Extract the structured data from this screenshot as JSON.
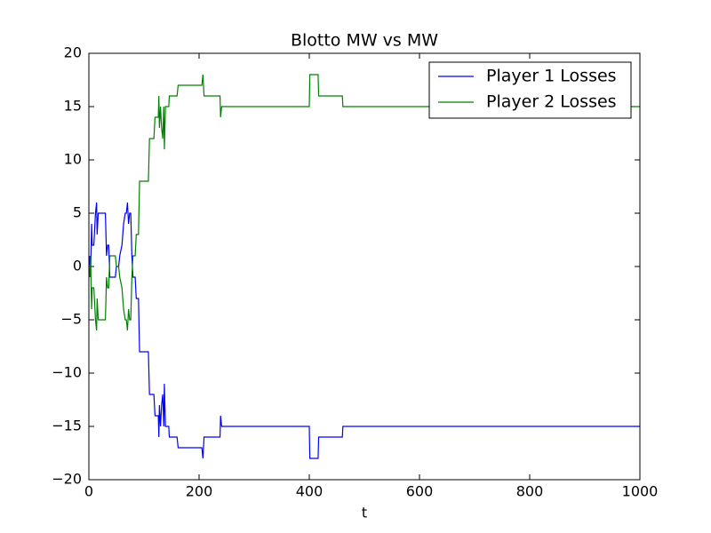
{
  "chart_data": {
    "type": "line",
    "title": "Blotto MW vs MW",
    "x_label": "t",
    "x": [
      0,
      2,
      3,
      5,
      6,
      9,
      10,
      12,
      14,
      15,
      17,
      30,
      32,
      34,
      36,
      38,
      48,
      50,
      54,
      56,
      60,
      63,
      66,
      68,
      70,
      72,
      74,
      76,
      78,
      80,
      84,
      86,
      90,
      92,
      108,
      110,
      118,
      120,
      126,
      127,
      128,
      130,
      132,
      134,
      136,
      137,
      139,
      145,
      146,
      160,
      162,
      205,
      207,
      209,
      238,
      239,
      241,
      400,
      401,
      416,
      417,
      460,
      461,
      1000
    ],
    "series": [
      {
        "name": "Player 1 Losses",
        "color": "#0000ff",
        "values": [
          0,
          1,
          -1,
          4,
          2,
          2,
          3,
          5,
          6,
          3,
          5,
          5,
          1,
          2,
          2,
          -1,
          -1,
          0,
          0,
          1,
          2,
          4,
          5,
          5,
          6,
          4,
          5,
          5,
          1,
          -1,
          -1,
          -3,
          -3,
          -8,
          -8,
          -12,
          -12,
          -14,
          -14,
          -16,
          -13,
          -15,
          -13,
          -12,
          -15,
          -11,
          -15,
          -15,
          -16,
          -16,
          -17,
          -17,
          -18,
          -16,
          -16,
          -14,
          -15,
          -15,
          -18,
          -18,
          -16,
          -16,
          -15,
          -15
        ]
      },
      {
        "name": "Player 2 Losses",
        "color": "#008000",
        "values": [
          0,
          -1,
          1,
          -4,
          -2,
          -2,
          -3,
          -5,
          -6,
          -3,
          -5,
          -5,
          -1,
          -2,
          -2,
          1,
          1,
          0,
          0,
          -1,
          -2,
          -4,
          -5,
          -5,
          -6,
          -4,
          -5,
          -5,
          -1,
          1,
          1,
          3,
          3,
          8,
          8,
          12,
          12,
          14,
          14,
          16,
          13,
          15,
          13,
          12,
          15,
          11,
          15,
          15,
          16,
          16,
          17,
          17,
          18,
          16,
          16,
          14,
          15,
          15,
          18,
          18,
          16,
          16,
          15,
          15
        ]
      }
    ],
    "xlim": [
      0,
      1000
    ],
    "ylim": [
      -20,
      20
    ],
    "xticks": [
      0,
      200,
      400,
      600,
      800,
      1000
    ],
    "yticks": [
      {
        "value": -20,
        "label": "−20"
      },
      {
        "value": -15,
        "label": "−15"
      },
      {
        "value": -10,
        "label": "−10"
      },
      {
        "value": -5,
        "label": "−5"
      },
      0,
      5,
      10,
      15,
      20
    ],
    "legend": "upper right"
  }
}
